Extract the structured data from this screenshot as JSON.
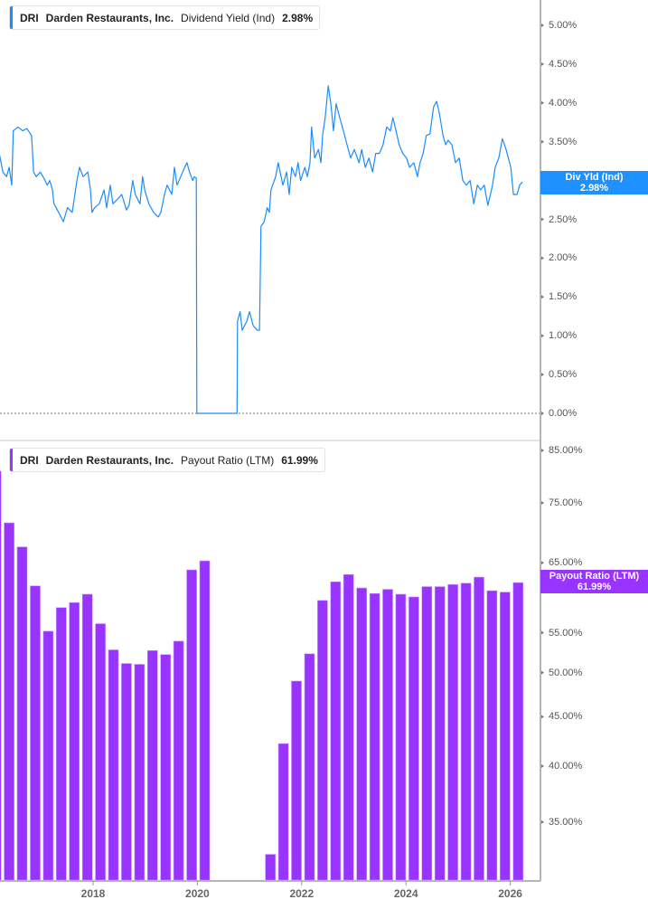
{
  "colors": {
    "yield": "#1a8cff",
    "payout": "#9933ff",
    "axis": "#b5b5b5"
  },
  "top_legend": {
    "ticker": "DRI",
    "company": "Darden Restaurants, Inc.",
    "metric": "Dividend Yield (Ind)",
    "value": "2.98%"
  },
  "bottom_legend": {
    "ticker": "DRI",
    "company": "Darden Restaurants, Inc.",
    "metric": "Payout Ratio (LTM)",
    "value": "61.99%"
  },
  "top_flag": {
    "label": "Div Yld (Ind)",
    "value": "2.98%"
  },
  "bottom_flag": {
    "label": "Payout Ratio (LTM)",
    "value": "61.99%"
  },
  "x_ticks": [
    {
      "year": 2018,
      "label": "2018"
    },
    {
      "year": 2020,
      "label": "2020"
    },
    {
      "year": 2022,
      "label": "2022"
    },
    {
      "year": 2024,
      "label": "2024"
    },
    {
      "year": 2026,
      "label": "2026"
    }
  ],
  "chart_data": [
    {
      "type": "line",
      "name": "Dividend Yield (Ind)",
      "ylim": [
        -0.27,
        5.33
      ],
      "xlim": [
        2016.2,
        2026.3
      ],
      "y_scale": "linear",
      "y_ticks": [
        "5.00%",
        "4.50%",
        "4.00%",
        "3.50%",
        "3.00%",
        "2.50%",
        "2.00%",
        "1.50%",
        "1.00%",
        "0.50%",
        "0.00%"
      ],
      "y_tick_values": [
        5,
        4.5,
        4,
        3.5,
        3,
        2.5,
        2,
        1.5,
        1,
        0.5,
        0
      ],
      "zero_line": "dotted",
      "points": [
        [
          2016.21,
          3.32
        ],
        [
          2016.27,
          3.11
        ],
        [
          2016.34,
          3.05
        ],
        [
          2016.39,
          3.17
        ],
        [
          2016.44,
          2.94
        ],
        [
          2016.47,
          3.64
        ],
        [
          2016.56,
          3.69
        ],
        [
          2016.65,
          3.64
        ],
        [
          2016.73,
          3.67
        ],
        [
          2016.82,
          3.58
        ],
        [
          2016.86,
          3.11
        ],
        [
          2016.91,
          3.05
        ],
        [
          2016.99,
          3.11
        ],
        [
          2017.08,
          3.0
        ],
        [
          2017.12,
          2.94
        ],
        [
          2017.17,
          3.0
        ],
        [
          2017.22,
          2.88
        ],
        [
          2017.25,
          2.7
        ],
        [
          2017.34,
          2.59
        ],
        [
          2017.43,
          2.47
        ],
        [
          2017.51,
          2.65
        ],
        [
          2017.6,
          2.59
        ],
        [
          2017.69,
          3.0
        ],
        [
          2017.74,
          3.17
        ],
        [
          2017.81,
          3.05
        ],
        [
          2017.9,
          3.11
        ],
        [
          2017.95,
          2.88
        ],
        [
          2017.98,
          2.59
        ],
        [
          2018.03,
          2.65
        ],
        [
          2018.12,
          2.7
        ],
        [
          2018.21,
          2.88
        ],
        [
          2018.26,
          2.65
        ],
        [
          2018.33,
          2.94
        ],
        [
          2018.38,
          2.7
        ],
        [
          2018.47,
          2.76
        ],
        [
          2018.55,
          2.82
        ],
        [
          2018.64,
          2.62
        ],
        [
          2018.69,
          2.68
        ],
        [
          2018.76,
          3.0
        ],
        [
          2018.81,
          2.82
        ],
        [
          2018.9,
          2.7
        ],
        [
          2018.95,
          3.05
        ],
        [
          2018.99,
          2.88
        ],
        [
          2019.07,
          2.7
        ],
        [
          2019.16,
          2.59
        ],
        [
          2019.25,
          2.53
        ],
        [
          2019.3,
          2.59
        ],
        [
          2019.37,
          2.82
        ],
        [
          2019.42,
          2.94
        ],
        [
          2019.51,
          2.82
        ],
        [
          2019.56,
          3.17
        ],
        [
          2019.61,
          2.94
        ],
        [
          2019.68,
          3.05
        ],
        [
          2019.77,
          3.19
        ],
        [
          2019.8,
          3.23
        ],
        [
          2019.85,
          3.11
        ],
        [
          2019.91,
          3.0
        ],
        [
          2019.94,
          3.05
        ],
        [
          2019.98,
          3.03
        ],
        [
          2019.99,
          0
        ],
        [
          2020.76,
          0
        ],
        [
          2020.77,
          1.19
        ],
        [
          2020.82,
          1.31
        ],
        [
          2020.86,
          1.07
        ],
        [
          2020.95,
          1.19
        ],
        [
          2021.0,
          1.31
        ],
        [
          2021.07,
          1.13
        ],
        [
          2021.15,
          1.07
        ],
        [
          2021.19,
          1.07
        ],
        [
          2021.22,
          2.41
        ],
        [
          2021.28,
          2.47
        ],
        [
          2021.34,
          2.65
        ],
        [
          2021.38,
          2.59
        ],
        [
          2021.41,
          2.88
        ],
        [
          2021.5,
          3.05
        ],
        [
          2021.55,
          3.23
        ],
        [
          2021.64,
          2.94
        ],
        [
          2021.71,
          3.11
        ],
        [
          2021.76,
          2.82
        ],
        [
          2021.81,
          3.17
        ],
        [
          2021.88,
          3.05
        ],
        [
          2021.93,
          3.23
        ],
        [
          2021.98,
          3.0
        ],
        [
          2022.06,
          3.17
        ],
        [
          2022.11,
          3.05
        ],
        [
          2022.16,
          3.23
        ],
        [
          2022.19,
          3.69
        ],
        [
          2022.25,
          3.29
        ],
        [
          2022.32,
          3.4
        ],
        [
          2022.37,
          3.23
        ],
        [
          2022.4,
          3.58
        ],
        [
          2022.45,
          3.81
        ],
        [
          2022.51,
          4.22
        ],
        [
          2022.56,
          3.99
        ],
        [
          2022.61,
          3.64
        ],
        [
          2022.66,
          3.99
        ],
        [
          2022.73,
          3.81
        ],
        [
          2022.8,
          3.64
        ],
        [
          2022.87,
          3.46
        ],
        [
          2022.94,
          3.29
        ],
        [
          2023.01,
          3.4
        ],
        [
          2023.1,
          3.23
        ],
        [
          2023.15,
          3.4
        ],
        [
          2023.22,
          3.17
        ],
        [
          2023.29,
          3.29
        ],
        [
          2023.36,
          3.11
        ],
        [
          2023.42,
          3.35
        ],
        [
          2023.49,
          3.35
        ],
        [
          2023.56,
          3.46
        ],
        [
          2023.63,
          3.69
        ],
        [
          2023.7,
          3.64
        ],
        [
          2023.75,
          3.81
        ],
        [
          2023.81,
          3.64
        ],
        [
          2023.87,
          3.46
        ],
        [
          2023.94,
          3.35
        ],
        [
          2024.01,
          3.29
        ],
        [
          2024.07,
          3.17
        ],
        [
          2024.15,
          3.23
        ],
        [
          2024.22,
          3.05
        ],
        [
          2024.27,
          3.23
        ],
        [
          2024.33,
          3.35
        ],
        [
          2024.39,
          3.58
        ],
        [
          2024.46,
          3.6
        ],
        [
          2024.53,
          3.95
        ],
        [
          2024.59,
          4.02
        ],
        [
          2024.64,
          3.87
        ],
        [
          2024.71,
          3.58
        ],
        [
          2024.76,
          3.46
        ],
        [
          2024.81,
          3.52
        ],
        [
          2024.88,
          3.46
        ],
        [
          2024.95,
          3.23
        ],
        [
          2025.02,
          3.29
        ],
        [
          2025.09,
          3.0
        ],
        [
          2025.16,
          2.94
        ],
        [
          2025.23,
          3.0
        ],
        [
          2025.3,
          2.7
        ],
        [
          2025.37,
          2.94
        ],
        [
          2025.43,
          2.88
        ],
        [
          2025.5,
          2.94
        ],
        [
          2025.57,
          2.68
        ],
        [
          2025.66,
          2.94
        ],
        [
          2025.71,
          3.17
        ],
        [
          2025.78,
          3.29
        ],
        [
          2025.85,
          3.54
        ],
        [
          2025.92,
          3.4
        ],
        [
          2026.01,
          3.17
        ],
        [
          2026.06,
          2.82
        ],
        [
          2026.13,
          2.82
        ],
        [
          2026.18,
          2.94
        ],
        [
          2026.23,
          2.98
        ]
      ]
    },
    {
      "type": "bar",
      "name": "Payout Ratio (LTM)",
      "y_scale": "log",
      "ylim": [
        30.5,
        86.5
      ],
      "xlim": [
        2016.2,
        2026.3
      ],
      "y_ticks": [
        "85.00%",
        "75.00%",
        "65.00%",
        "55.00%",
        "50.00%",
        "45.00%",
        "40.00%",
        "35.00%"
      ],
      "y_tick_values": [
        85,
        75,
        65,
        55,
        50,
        45,
        40,
        35
      ],
      "x": [
        2016.14,
        2016.39,
        2016.64,
        2016.89,
        2017.14,
        2017.39,
        2017.64,
        2017.89,
        2018.14,
        2018.39,
        2018.64,
        2018.89,
        2019.14,
        2019.39,
        2019.64,
        2019.89,
        2020.14,
        2021.4,
        2021.65,
        2021.9,
        2022.15,
        2022.4,
        2022.65,
        2022.9,
        2023.15,
        2023.4,
        2023.65,
        2023.9,
        2024.15,
        2024.4,
        2024.65,
        2024.9,
        2025.15,
        2025.4,
        2025.65,
        2025.9,
        2026.15
      ],
      "values": [
        80.9,
        71.5,
        67.5,
        61.5,
        55.2,
        58.4,
        59.1,
        60.3,
        56.2,
        52.8,
        51.1,
        51.0,
        52.7,
        52.2,
        53.9,
        63.9,
        65.3,
        32.4,
        42.2,
        49.0,
        52.3,
        59.4,
        62.1,
        63.2,
        61.2,
        60.4,
        61.0,
        60.3,
        59.9,
        61.4,
        61.4,
        61.7,
        61.9,
        62.8,
        60.8,
        60.6,
        61.99
      ]
    }
  ]
}
